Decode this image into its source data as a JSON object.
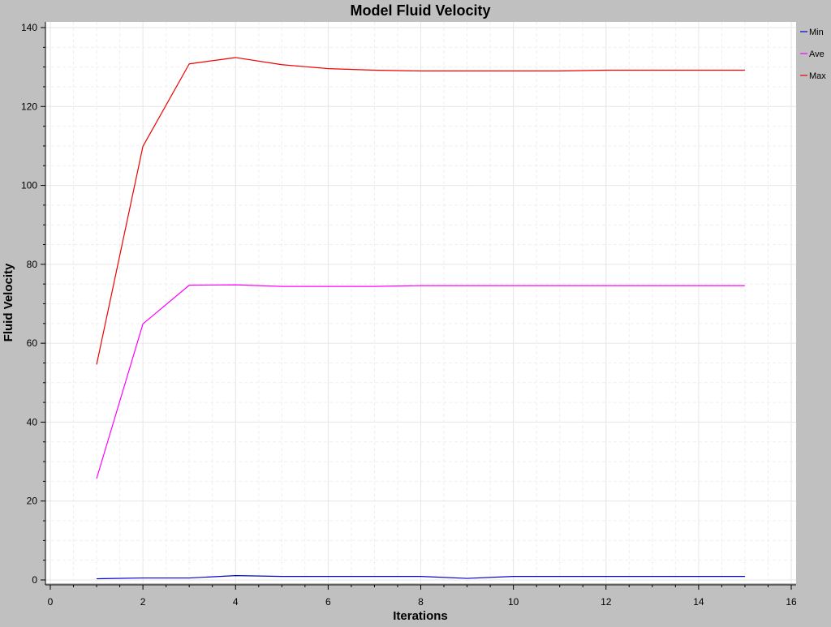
{
  "chart_data": {
    "type": "line",
    "title": "Model Fluid Velocity",
    "xlabel": "Iterations",
    "ylabel": "Fluid Velocity",
    "xlim": [
      0,
      16
    ],
    "ylim": [
      0,
      140
    ],
    "xticks": [
      0,
      2,
      4,
      6,
      8,
      10,
      12,
      14,
      16
    ],
    "yticks": [
      0,
      20,
      40,
      60,
      80,
      100,
      120,
      140
    ],
    "grid": true,
    "legend_position": "top-right",
    "x": [
      1,
      2,
      3,
      4,
      5,
      6,
      7,
      8,
      9,
      10,
      11,
      12,
      13,
      14,
      15
    ],
    "series": [
      {
        "name": "Min",
        "color": "#0000cc",
        "values": [
          0.3,
          0.5,
          0.5,
          1.1,
          0.9,
          0.9,
          0.9,
          0.9,
          0.4,
          0.9,
          0.9,
          0.9,
          0.9,
          0.9,
          0.9
        ]
      },
      {
        "name": "Ave",
        "color": "#ff00ff",
        "values": [
          25.7,
          64.9,
          74.7,
          74.8,
          74.4,
          74.4,
          74.4,
          74.6,
          74.6,
          74.6,
          74.6,
          74.6,
          74.6,
          74.6,
          74.6
        ]
      },
      {
        "name": "Max",
        "color": "#ee0000",
        "values": [
          54.6,
          109.9,
          130.8,
          132.4,
          130.6,
          129.6,
          129.2,
          129.0,
          129.0,
          129.0,
          129.0,
          129.2,
          129.2,
          129.2,
          129.2
        ]
      }
    ]
  }
}
